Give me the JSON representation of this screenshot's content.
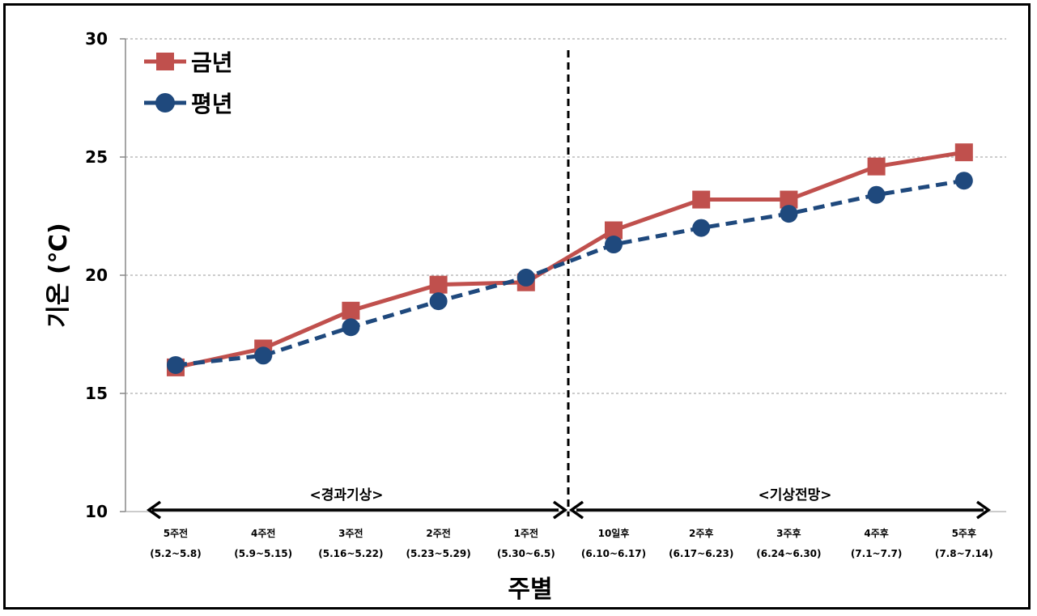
{
  "chart_data": {
    "type": "line",
    "title": "",
    "xlabel": "주별",
    "ylabel": "기온 (℃)",
    "ylim": [
      10,
      30
    ],
    "yticks": [
      10,
      15,
      20,
      25,
      30
    ],
    "grid": "horizontal dotted",
    "legend_position": "top-left",
    "categories": [
      {
        "week": "5주전",
        "range": "(5.2~5.8)"
      },
      {
        "week": "4주전",
        "range": "(5.9~5.15)"
      },
      {
        "week": "3주전",
        "range": "(5.16~5.22)"
      },
      {
        "week": "2주전",
        "range": "(5.23~5.29)"
      },
      {
        "week": "1주전",
        "range": "(5.30~6.5)"
      },
      {
        "week": "10일후",
        "range": "(6.10~6.17)"
      },
      {
        "week": "2주후",
        "range": "(6.17~6.23)"
      },
      {
        "week": "3주후",
        "range": "(6.24~6.30)"
      },
      {
        "week": "4주후",
        "range": "(7.1~7.7)"
      },
      {
        "week": "5주후",
        "range": "(7.8~7.14)"
      }
    ],
    "series": [
      {
        "name": "금년",
        "color": "#c0504d",
        "marker": "square",
        "line_style": "solid",
        "values": [
          16.1,
          16.9,
          18.5,
          19.6,
          19.7,
          21.9,
          23.2,
          23.2,
          24.6,
          25.2
        ]
      },
      {
        "name": "평년",
        "color": "#1f497d",
        "marker": "circle",
        "line_style": "dashed",
        "values": [
          16.2,
          16.6,
          17.8,
          18.9,
          19.9,
          21.3,
          22.0,
          22.6,
          23.4,
          24.0
        ]
      }
    ],
    "annotations": {
      "past_label": "<경과기상>",
      "forecast_label": "<기상전망>"
    }
  }
}
